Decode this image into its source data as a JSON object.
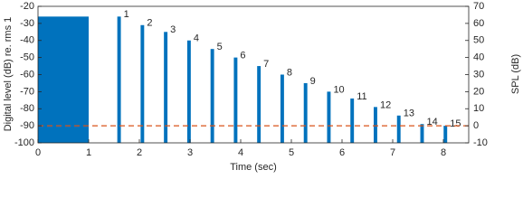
{
  "chart_data": {
    "type": "bar",
    "xlabel": "Time (sec)",
    "ylabel": "Digital level (dB) re. rms 1",
    "y2label": "SPL (dB)",
    "x": [
      1.6,
      2.06,
      2.52,
      2.98,
      3.44,
      3.9,
      4.36,
      4.82,
      5.28,
      5.74,
      6.2,
      6.66,
      7.12,
      7.58,
      8.04
    ],
    "values": [
      -26,
      -31,
      -35,
      -40,
      -45,
      -50,
      -55,
      -60,
      -65,
      -70,
      -74,
      -79,
      -84,
      -89,
      -90
    ],
    "labels": [
      "1",
      "2",
      "3",
      "4",
      "5",
      "6",
      "7",
      "8",
      "9",
      "10",
      "11",
      "12",
      "13",
      "14",
      "15"
    ],
    "color": "#0072bd",
    "block": {
      "xrange": [
        0,
        1
      ],
      "value": -26
    },
    "hline": {
      "value": -90,
      "color": "#d95319"
    },
    "xlim": [
      0,
      8.5
    ],
    "xticks": [
      0,
      1,
      2,
      3,
      4,
      5,
      6,
      7,
      8
    ],
    "ylim": [
      -100,
      -20
    ],
    "yticks": [
      -100,
      -90,
      -80,
      -70,
      -60,
      -50,
      -40,
      -30,
      -20
    ],
    "y2lim": [
      -10,
      70
    ],
    "y2ticks": [
      -10,
      0,
      10,
      20,
      30,
      40,
      50,
      60,
      70
    ],
    "grid": false
  }
}
